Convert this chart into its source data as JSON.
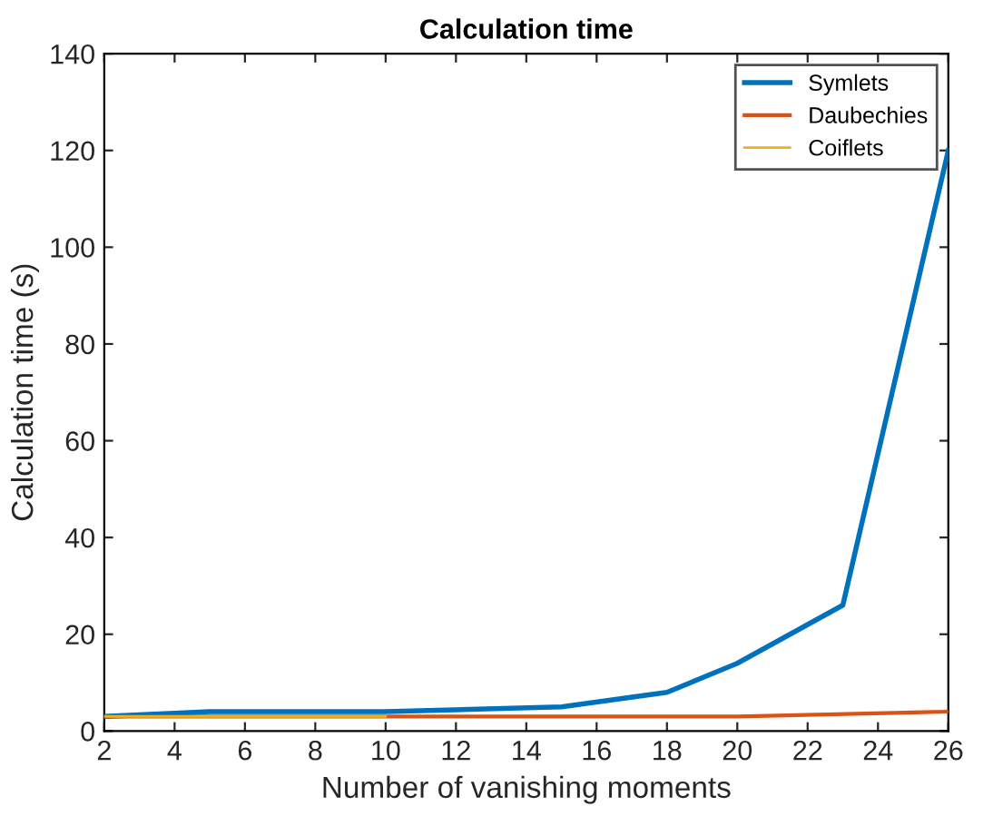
{
  "chart_data": {
    "type": "line",
    "title": "Calculation time",
    "xlabel": "Number of vanishing moments",
    "ylabel": "Calculation time (s)",
    "xlim": [
      2,
      26
    ],
    "xticks": [
      2,
      4,
      6,
      8,
      10,
      12,
      14,
      16,
      18,
      20,
      22,
      24,
      26
    ],
    "ylim": [
      0,
      140
    ],
    "yticks": [
      0,
      20,
      40,
      60,
      80,
      100,
      120,
      140
    ],
    "grid": false,
    "legend": "top right",
    "marker": "none",
    "line_style": "solid",
    "series": [
      {
        "name": "Symlets",
        "color": "#0072bd",
        "x": [
          2,
          5,
          10,
          15,
          18,
          20,
          23,
          26
        ],
        "values": [
          3,
          4,
          4,
          5,
          8,
          14,
          26,
          120
        ]
      },
      {
        "name": "Daubechies",
        "color": "#d95319",
        "x": [
          2,
          10,
          20,
          26
        ],
        "values": [
          3,
          3,
          3,
          4
        ]
      },
      {
        "name": "Coiflets",
        "color": "#edb120",
        "x": [
          2,
          4,
          6,
          8,
          10
        ],
        "values": [
          3,
          3,
          3,
          3,
          3
        ]
      }
    ]
  }
}
